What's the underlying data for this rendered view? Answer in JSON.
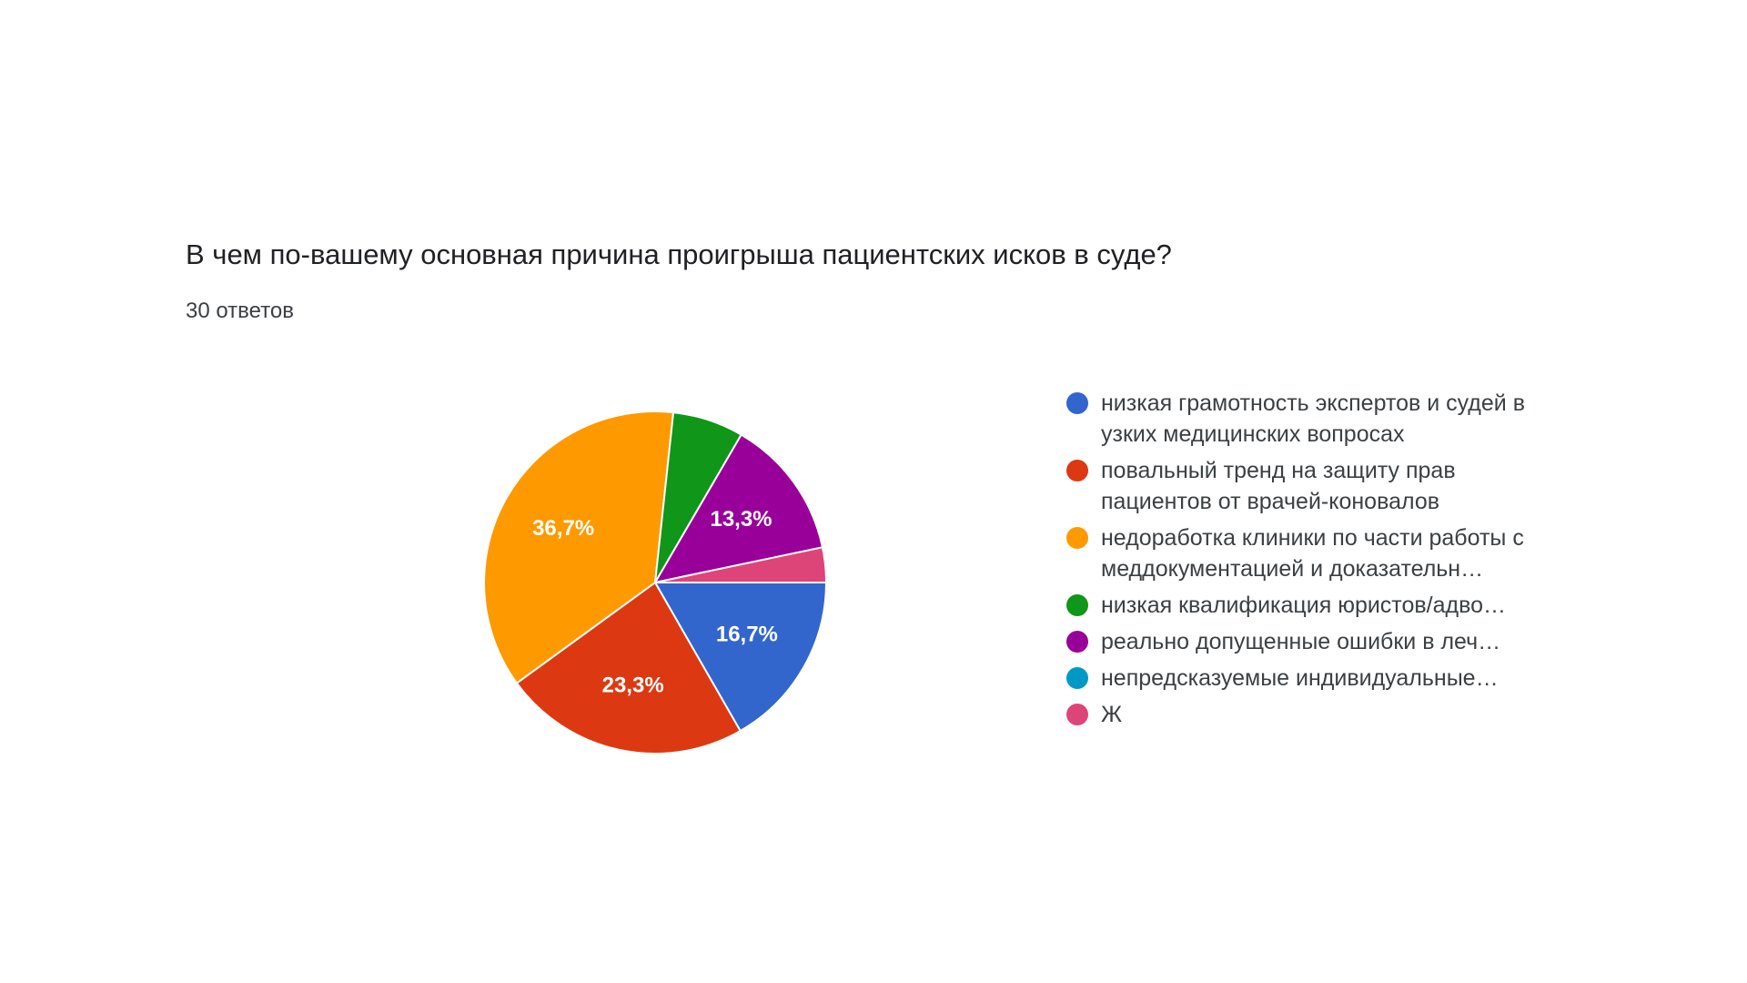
{
  "form": {
    "question": "В чем по-вашему основная причина проигрыша пациентских исков в суде?",
    "responses": "30 ответов"
  },
  "chart_data": {
    "type": "pie",
    "title": "В чем по-вашему основная причина проигрыша пациентских исков в суде?",
    "subtitle": "30 ответов",
    "legend_position": "right",
    "slices": [
      {
        "label": "низкая грамотность экспертов и судей в узких медицинских вопросах",
        "display": "низкая грамотность экспертов и судей в узких медицинских вопросах",
        "value": 16.7,
        "data_label": "16,7%",
        "color": "#3366cc"
      },
      {
        "label": "повальный тренд на защиту прав пациентов от врачей-коновалов",
        "display": "повальный тренд на защиту прав пациентов от врачей-коновалов",
        "value": 23.3,
        "data_label": "23,3%",
        "color": "#dc3912"
      },
      {
        "label": "недоработка клиники по части работы с меддокументацией и доказательн…",
        "display": "недоработка клиники по части работы с меддокументацией и доказательн…",
        "value": 36.7,
        "data_label": "36,7%",
        "color": "#ff9900"
      },
      {
        "label": "низкая квалификация юристов/адво…",
        "display": "низкая квалификация юристов/адво…",
        "value": 6.7,
        "data_label": "",
        "color": "#109618"
      },
      {
        "label": "реально допущенные ошибки в леч…",
        "display": "реально допущенные ошибки в леч…",
        "value": 13.3,
        "data_label": "13,3%",
        "color": "#990099"
      },
      {
        "label": "непредсказуемые индивидуальные…",
        "display": "непредсказуемые индивидуальные…",
        "value": 0,
        "data_label": "",
        "color": "#0099c6"
      },
      {
        "label": "Ж",
        "display": "Ж",
        "value": 3.3,
        "data_label": "",
        "color": "#dd4477"
      }
    ]
  }
}
